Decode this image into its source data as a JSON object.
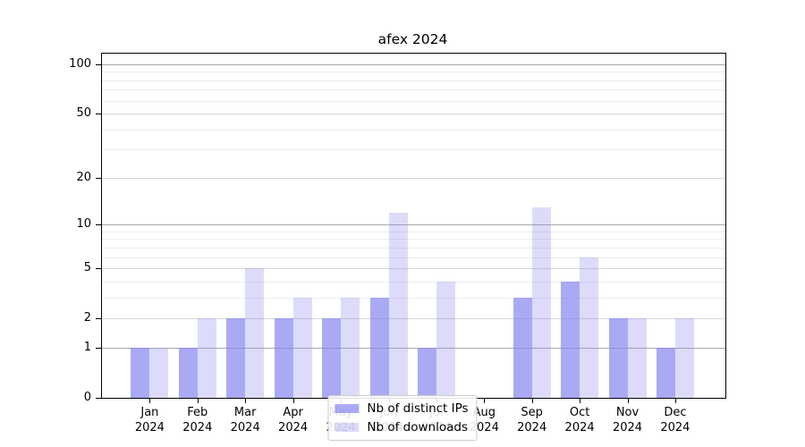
{
  "chart_data": {
    "type": "bar",
    "title": "afex 2024",
    "xlabel": "",
    "ylabel": "",
    "yscale": "log1p",
    "ylim": [
      0,
      116
    ],
    "yticks": [
      0,
      1,
      2,
      5,
      10,
      20,
      50,
      100
    ],
    "minor_gridlines": [
      3,
      4,
      6,
      7,
      8,
      9,
      30,
      40,
      60,
      70,
      80,
      90
    ],
    "grid": true,
    "legend_position": "lower center",
    "categories": [
      "Jan 2024",
      "Feb 2024",
      "Mar 2024",
      "Apr 2024",
      "May 2024",
      "Jun 2024",
      "Jul 2024",
      "Aug 2024",
      "Sep 2024",
      "Oct 2024",
      "Nov 2024",
      "Dec 2024"
    ],
    "series": [
      {
        "name": "Nb of distinct IPs",
        "color": "rgba(134,134,239,0.70)",
        "values": [
          1,
          1,
          2,
          2,
          2,
          3,
          1,
          0,
          3,
          4,
          2,
          1
        ]
      },
      {
        "name": "Nb of downloads",
        "color": "rgba(134,134,239,0.29)",
        "values": [
          1,
          2,
          5,
          3,
          3,
          12,
          4,
          0,
          13,
          6,
          2,
          2
        ]
      }
    ],
    "colors": {
      "accent_base": "#8686ef",
      "grid_major": "#a9a9a9",
      "grid_mid": "#d6d6d6",
      "grid_minor": "#ececec",
      "axis": "#000000",
      "text": "#000000",
      "legend_border": "#cccccc"
    }
  }
}
